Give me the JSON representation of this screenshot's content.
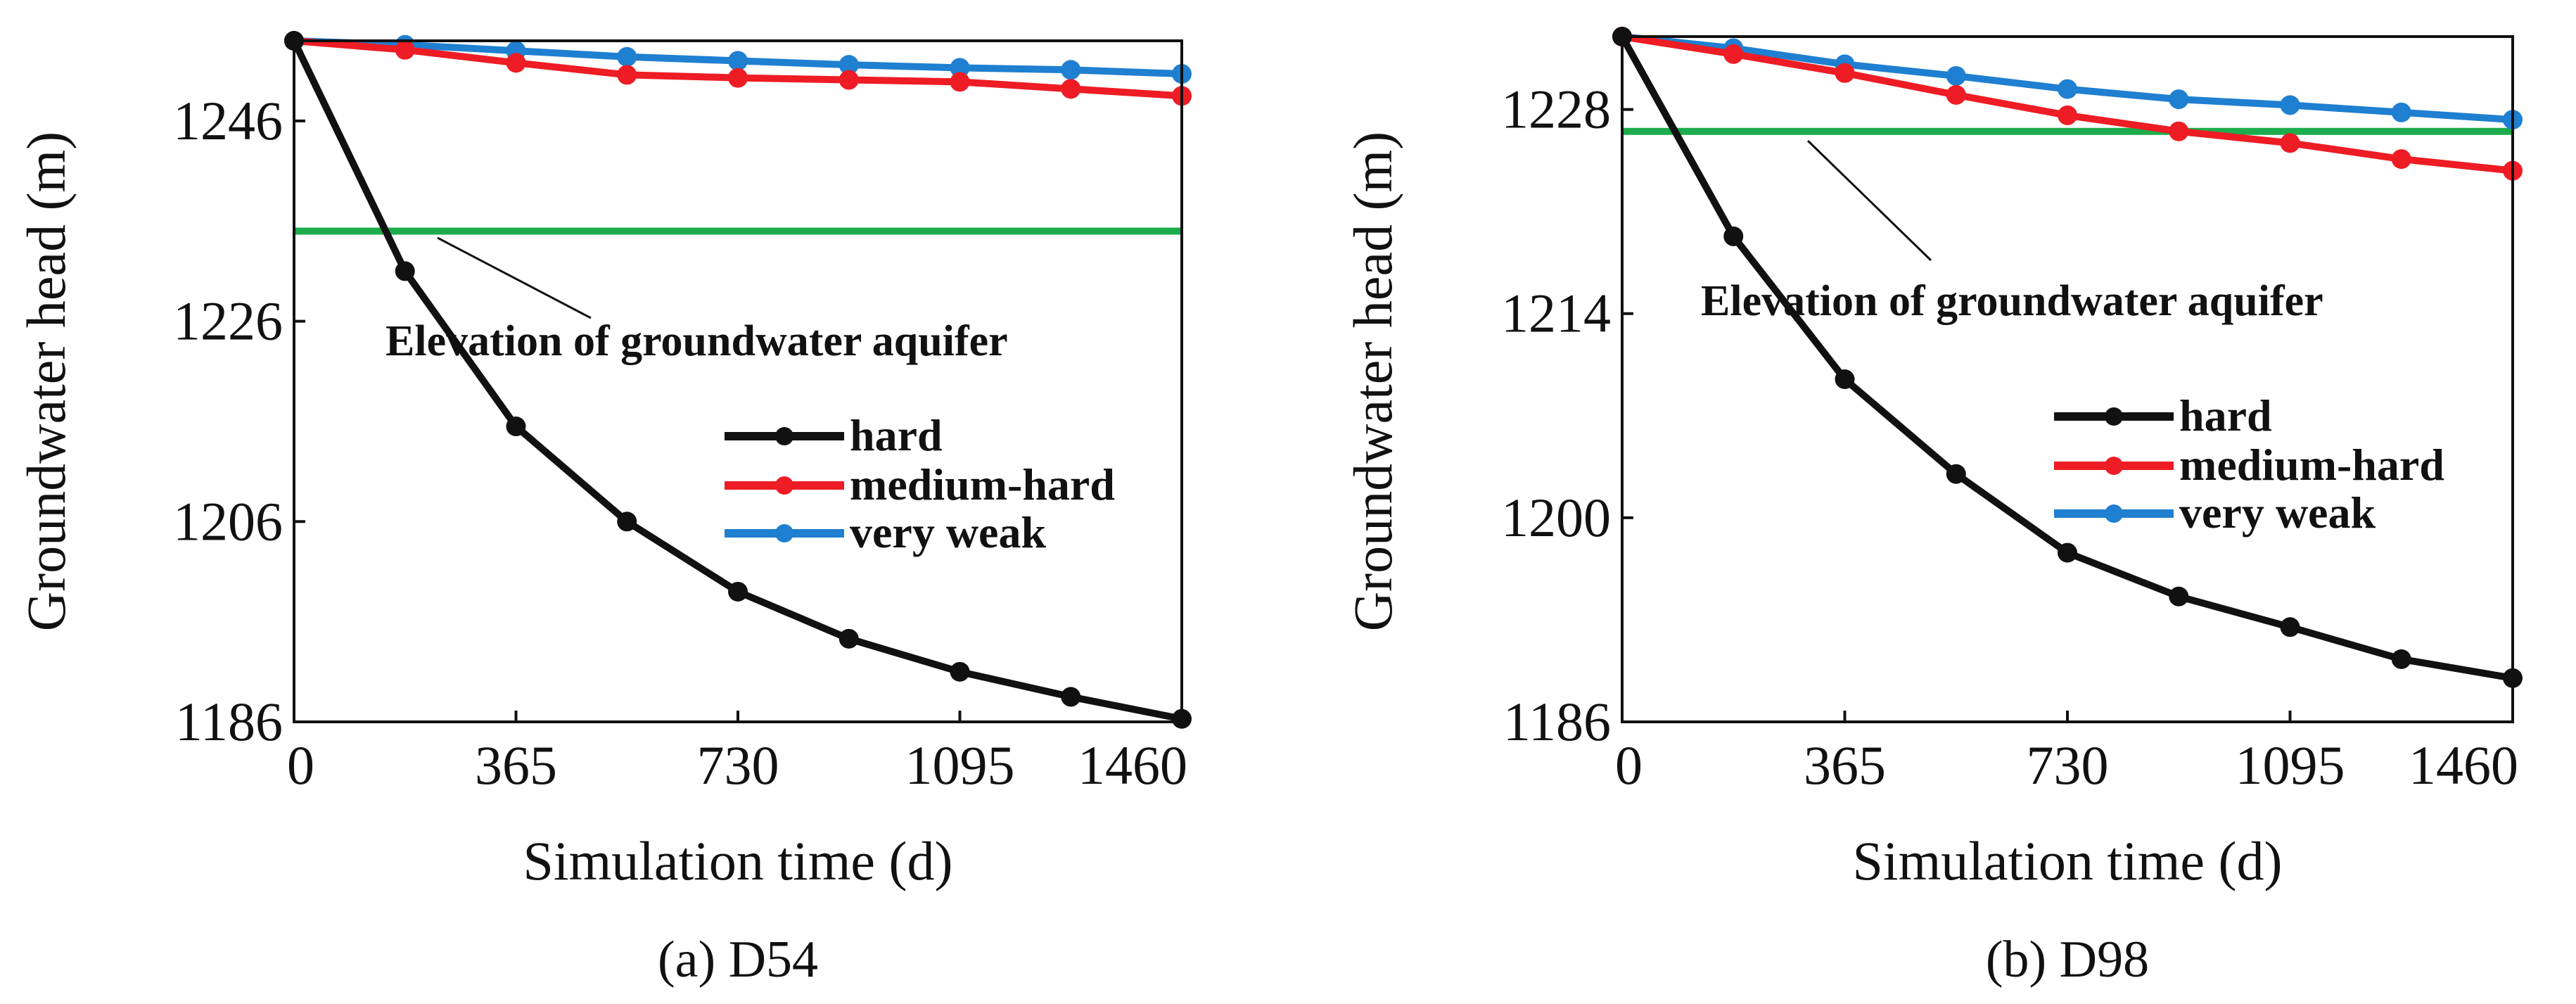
{
  "chart_data": [
    {
      "type": "line",
      "caption": "(a) D54",
      "xlabel": "Simulation time (d)",
      "ylabel": "Groundwater head (m)",
      "xlim": [
        0,
        1460
      ],
      "ylim": [
        1186,
        1254
      ],
      "xticks": [
        0,
        365,
        730,
        1095,
        1460
      ],
      "yticks": [
        1186,
        1206,
        1226,
        1246
      ],
      "x": [
        0,
        182.5,
        365,
        547.5,
        730,
        912.5,
        1095,
        1277.5,
        1460
      ],
      "series": [
        {
          "name": "hard",
          "color": "#111111",
          "values": [
            1254,
            1231,
            1215.5,
            1206,
            1199,
            1194.3,
            1191,
            1188.5,
            1186.3
          ]
        },
        {
          "name": "medium-hard",
          "color": "#ee1c24",
          "values": [
            1254,
            1253.1,
            1251.8,
            1250.6,
            1250.3,
            1250.1,
            1249.9,
            1249.2,
            1248.5
          ]
        },
        {
          "name": "very weak",
          "color": "#1f7fd0",
          "values": [
            1254,
            1253.6,
            1253,
            1252.4,
            1252,
            1251.6,
            1251.3,
            1251.1,
            1250.7
          ]
        }
      ],
      "reference_line": {
        "label": "Elevation of groundwater aquifer",
        "value": 1235,
        "color": "#1cac4c"
      }
    },
    {
      "type": "line",
      "caption": "(b) D98",
      "xlabel": "Simulation time (d)",
      "ylabel": "Groundwater head (m)",
      "xlim": [
        0,
        1460
      ],
      "ylim": [
        1186,
        1233
      ],
      "xticks": [
        0,
        365,
        730,
        1095,
        1460
      ],
      "yticks": [
        1186,
        1200,
        1214,
        1228
      ],
      "x": [
        0,
        182.5,
        365,
        547.5,
        730,
        912.5,
        1095,
        1277.5,
        1460
      ],
      "series": [
        {
          "name": "hard",
          "color": "#111111",
          "values": [
            1233,
            1219.3,
            1209.5,
            1203,
            1197.6,
            1194.6,
            1192.5,
            1190.3,
            1189
          ]
        },
        {
          "name": "medium-hard",
          "color": "#ee1c24",
          "values": [
            1233,
            1231.8,
            1230.5,
            1229,
            1227.6,
            1226.5,
            1225.7,
            1224.6,
            1223.8
          ]
        },
        {
          "name": "very weak",
          "color": "#1f7fd0",
          "values": [
            1233,
            1232.2,
            1231.1,
            1230.3,
            1229.4,
            1228.7,
            1228.3,
            1227.8,
            1227.3
          ]
        }
      ],
      "reference_line": {
        "label": "Elevation of groundwater aquifer",
        "value": 1226.5,
        "color": "#1cac4c"
      }
    }
  ]
}
